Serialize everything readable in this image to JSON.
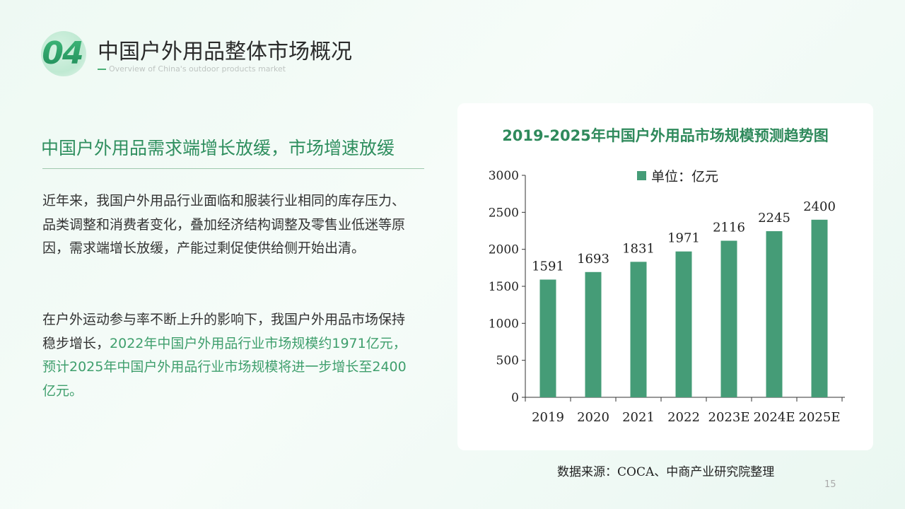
{
  "header": {
    "section_number": "04",
    "title": "中国户外用品整体市场概况",
    "subtitle": "Overview of China's outdoor products market"
  },
  "left": {
    "heading": "中国户外用品需求端增长放缓，市场增速放缓",
    "paragraph1": "近年来，我国户外用品行业面临和服装行业相同的库存压力、品类调整和消费者变化，叠加经济结构调整及零售业低迷等原因，需求端增长放缓，产能过剩促使供给侧开始出清。",
    "paragraph2_plain": "在户外运动参与率不断上升的影响下，我国户外用品市场保持稳步增长，",
    "paragraph2_highlight": "2022年中国户外用品行业市场规模约1971亿元，预计2025年中国户外用品行业市场规模将进一步增长至2400亿元。"
  },
  "chart_data": {
    "type": "bar",
    "title": "2019-2025年中国户外用品市场规模预测趋势图",
    "categories": [
      "2019",
      "2020",
      "2021",
      "2022",
      "2023E",
      "2024E",
      "2025E"
    ],
    "series": [
      {
        "name": "单位：亿元",
        "values": [
          1591,
          1693,
          1831,
          1971,
          2116,
          2245,
          2400
        ]
      }
    ],
    "ylim": [
      0,
      3000
    ],
    "yticks": [
      0,
      500,
      1000,
      1500,
      2000,
      2500,
      3000
    ],
    "legend_position": "top",
    "grid": false,
    "data_labels": true,
    "bar_color": "#459c77"
  },
  "source_note": "数据来源：COCA、中商产业研究院整理",
  "page_number": "15"
}
